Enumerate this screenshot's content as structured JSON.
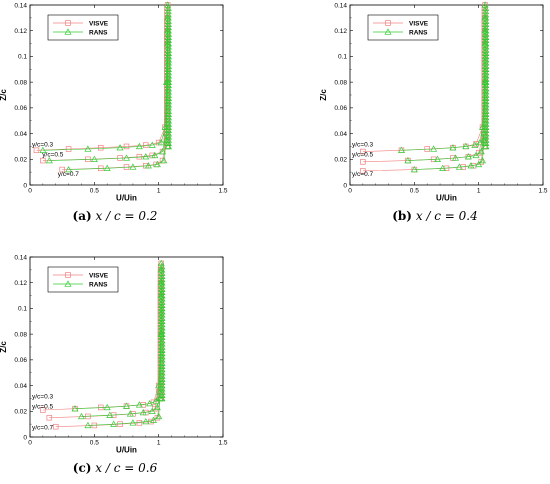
{
  "chart_data": [
    {
      "type": "line",
      "panel_tag": "(a)",
      "caption_math": "x / c = 0.2",
      "xlabel": "U/Uin",
      "ylabel": "Z/c",
      "xlim": [
        0,
        1.5
      ],
      "ylim": [
        0,
        0.14
      ],
      "xticks": [
        "0",
        "0.5",
        "1",
        "1.5"
      ],
      "yticks": [
        "0",
        "0.02",
        "0.04",
        "0.06",
        "0.08",
        "0.1",
        "0.12",
        "0.14"
      ],
      "legend_position": "top-left",
      "annotations": [
        {
          "text": "y/c=0.3",
          "x": 0.0,
          "y": 0.03
        },
        {
          "text": "y/c=0.5",
          "x": 0.08,
          "y": 0.022
        },
        {
          "text": "y/c=0.7",
          "x": 0.2,
          "y": 0.007
        }
      ],
      "series": [
        {
          "name": "VISVE",
          "color": "#f08080",
          "marker": "square",
          "profiles": [
            {
              "x": [
                0.05,
                0.3,
                0.55,
                0.75,
                0.9,
                1.0,
                1.05,
                1.07,
                1.07,
                1.07
              ],
              "y": [
                0.027,
                0.028,
                0.029,
                0.03,
                0.031,
                0.033,
                0.045,
                0.08,
                0.11,
                0.14
              ]
            },
            {
              "x": [
                0.1,
                0.45,
                0.7,
                0.85,
                0.95,
                1.03,
                1.06,
                1.07,
                1.07
              ],
              "y": [
                0.019,
                0.02,
                0.021,
                0.022,
                0.023,
                0.026,
                0.04,
                0.08,
                0.13
              ]
            },
            {
              "x": [
                0.25,
                0.55,
                0.75,
                0.9,
                0.98,
                1.03,
                1.06,
                1.07
              ],
              "y": [
                0.012,
                0.013,
                0.014,
                0.015,
                0.016,
                0.019,
                0.035,
                0.12
              ]
            }
          ]
        },
        {
          "name": "RANS",
          "color": "#33cc33",
          "marker": "triangle",
          "profiles": [
            {
              "x": [
                0.1,
                0.45,
                0.7,
                0.85,
                0.95,
                1.02,
                1.05,
                1.06,
                1.07,
                1.07
              ],
              "y": [
                0.027,
                0.028,
                0.029,
                0.03,
                0.031,
                0.033,
                0.045,
                0.08,
                0.11,
                0.14
              ]
            },
            {
              "x": [
                0.15,
                0.5,
                0.75,
                0.9,
                0.97,
                1.03,
                1.06,
                1.07,
                1.07
              ],
              "y": [
                0.019,
                0.02,
                0.021,
                0.022,
                0.023,
                0.026,
                0.04,
                0.08,
                0.13
              ]
            },
            {
              "x": [
                0.3,
                0.6,
                0.8,
                0.92,
                0.99,
                1.04,
                1.06,
                1.07
              ],
              "y": [
                0.012,
                0.013,
                0.014,
                0.015,
                0.016,
                0.019,
                0.035,
                0.12
              ]
            }
          ]
        }
      ]
    },
    {
      "type": "line",
      "panel_tag": "(b)",
      "caption_math": "x / c = 0.4",
      "xlabel": "U/Uin",
      "ylabel": "Z/c",
      "xlim": [
        0,
        1.5
      ],
      "ylim": [
        0,
        0.14
      ],
      "xticks": [
        "0",
        "0.5",
        "1",
        "1.5"
      ],
      "yticks": [
        "0",
        "0.02",
        "0.04",
        "0.06",
        "0.08",
        "0.1",
        "0.12",
        "0.14"
      ],
      "legend_position": "top-left",
      "annotations": [
        {
          "text": "y/c=0.3",
          "x": 0.0,
          "y": 0.03
        },
        {
          "text": "y/c=0.5",
          "x": 0.0,
          "y": 0.022
        },
        {
          "text": "y/c=0.7",
          "x": 0.0,
          "y": 0.007
        }
      ],
      "series": [
        {
          "name": "VISVE",
          "color": "#f08080",
          "marker": "square",
          "profiles": [
            {
              "x": [
                0.1,
                0.4,
                0.6,
                0.8,
                0.9,
                0.98,
                1.03,
                1.05,
                1.05,
                1.05
              ],
              "y": [
                0.026,
                0.027,
                0.028,
                0.029,
                0.03,
                0.032,
                0.045,
                0.08,
                0.11,
                0.14
              ]
            },
            {
              "x": [
                0.1,
                0.45,
                0.65,
                0.8,
                0.92,
                1.0,
                1.04,
                1.05,
                1.05
              ],
              "y": [
                0.018,
                0.019,
                0.02,
                0.021,
                0.022,
                0.025,
                0.04,
                0.08,
                0.13
              ]
            },
            {
              "x": [
                0.1,
                0.5,
                0.75,
                0.88,
                0.96,
                1.02,
                1.04,
                1.05
              ],
              "y": [
                0.011,
                0.012,
                0.013,
                0.014,
                0.015,
                0.018,
                0.035,
                0.12
              ]
            }
          ]
        },
        {
          "name": "RANS",
          "color": "#33cc33",
          "marker": "triangle",
          "profiles": [
            {
              "x": [
                0.4,
                0.65,
                0.8,
                0.9,
                0.97,
                1.01,
                1.03,
                1.05,
                1.05,
                1.05
              ],
              "y": [
                0.027,
                0.028,
                0.029,
                0.03,
                0.031,
                0.033,
                0.045,
                0.08,
                0.11,
                0.14
              ]
            },
            {
              "x": [
                0.45,
                0.68,
                0.82,
                0.92,
                0.98,
                1.02,
                1.04,
                1.05,
                1.05
              ],
              "y": [
                0.019,
                0.02,
                0.021,
                0.022,
                0.023,
                0.026,
                0.04,
                0.08,
                0.13
              ]
            },
            {
              "x": [
                0.5,
                0.72,
                0.85,
                0.94,
                1.0,
                1.03,
                1.04,
                1.05
              ],
              "y": [
                0.012,
                0.013,
                0.014,
                0.015,
                0.016,
                0.019,
                0.035,
                0.12
              ]
            }
          ]
        }
      ]
    },
    {
      "type": "line",
      "panel_tag": "(c)",
      "caption_math": "x / c = 0.6",
      "xlabel": "U/Uin",
      "ylabel": "Z/c",
      "xlim": [
        0,
        1.5
      ],
      "ylim": [
        0,
        0.14
      ],
      "xticks": [
        "0",
        "0.5",
        "1",
        "1.5"
      ],
      "yticks": [
        "0",
        "0.02",
        "0.04",
        "0.06",
        "0.08",
        "0.1",
        "0.12",
        "0.14"
      ],
      "legend_position": "top-left",
      "annotations": [
        {
          "text": "y/c=0.3",
          "x": 0.0,
          "y": 0.03
        },
        {
          "text": "y/c=0.5",
          "x": 0.0,
          "y": 0.022
        },
        {
          "text": "y/c=0.7",
          "x": 0.0,
          "y": 0.006
        }
      ],
      "series": [
        {
          "name": "VISVE",
          "color": "#f08080",
          "marker": "square",
          "profiles": [
            {
              "x": [
                0.1,
                0.35,
                0.55,
                0.75,
                0.88,
                0.96,
                1.0,
                1.02,
                1.02,
                1.02
              ],
              "y": [
                0.021,
                0.022,
                0.023,
                0.024,
                0.025,
                0.027,
                0.04,
                0.08,
                0.11,
                0.135
              ]
            },
            {
              "x": [
                0.15,
                0.45,
                0.65,
                0.8,
                0.9,
                0.97,
                1.0,
                1.02,
                1.02
              ],
              "y": [
                0.015,
                0.016,
                0.017,
                0.018,
                0.019,
                0.022,
                0.035,
                0.08,
                0.13
              ]
            },
            {
              "x": [
                0.2,
                0.5,
                0.7,
                0.85,
                0.94,
                0.99,
                1.01,
                1.02
              ],
              "y": [
                0.008,
                0.009,
                0.01,
                0.011,
                0.012,
                0.015,
                0.03,
                0.12
              ]
            }
          ]
        },
        {
          "name": "RANS",
          "color": "#33cc33",
          "marker": "triangle",
          "profiles": [
            {
              "x": [
                0.35,
                0.6,
                0.75,
                0.85,
                0.93,
                0.98,
                1.0,
                1.02,
                1.02,
                1.02
              ],
              "y": [
                0.022,
                0.023,
                0.024,
                0.025,
                0.026,
                0.028,
                0.04,
                0.08,
                0.11,
                0.135
              ]
            },
            {
              "x": [
                0.4,
                0.62,
                0.78,
                0.88,
                0.95,
                0.99,
                1.01,
                1.02,
                1.02
              ],
              "y": [
                0.016,
                0.017,
                0.018,
                0.019,
                0.02,
                0.023,
                0.035,
                0.08,
                0.13
              ]
            },
            {
              "x": [
                0.45,
                0.65,
                0.8,
                0.9,
                0.96,
                1.0,
                1.01,
                1.02
              ],
              "y": [
                0.009,
                0.01,
                0.011,
                0.012,
                0.013,
                0.016,
                0.03,
                0.12
              ]
            }
          ]
        }
      ]
    }
  ]
}
